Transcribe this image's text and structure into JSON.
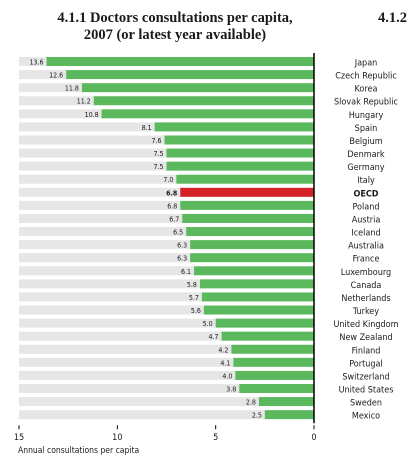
{
  "figure": {
    "number": "4.1.1",
    "title_line1": "Doctors consultations per capita,",
    "title_line2": "2007 (or latest year available)",
    "next_figure_number": "4.1.2"
  },
  "chart_data": {
    "type": "bar",
    "orientation": "horizontal",
    "xlabel": "Annual consultations per capita",
    "xlim": [
      0,
      15
    ],
    "x_axis_reversed": true,
    "xticks": [
      "15",
      "10",
      "5",
      "0"
    ],
    "grid": false,
    "categories": [
      "Japan",
      "Czech Republic",
      "Korea",
      "Slovak Republic",
      "Hungary",
      "Spain",
      "Belgium",
      "Denmark",
      "Germany",
      "Italy",
      "OECD",
      "Poland",
      "Austria",
      "Iceland",
      "Australia",
      "France",
      "Luxembourg",
      "Canada",
      "Netherlands",
      "Turkey",
      "United Kingdom",
      "New Zealand",
      "Finland",
      "Portugal",
      "Switzerland",
      "United States",
      "Sweden",
      "Mexico"
    ],
    "values": [
      13.6,
      12.6,
      11.8,
      11.2,
      10.8,
      8.1,
      7.6,
      7.5,
      7.5,
      7.0,
      6.8,
      6.8,
      6.7,
      6.5,
      6.3,
      6.3,
      6.1,
      5.8,
      5.7,
      5.6,
      5.0,
      4.7,
      4.2,
      4.1,
      4.0,
      3.8,
      2.8,
      2.5
    ],
    "value_labels": [
      "13.6",
      "12.6",
      "11.8",
      "11.2",
      "10.8",
      "8.1",
      "7.6",
      "7.5",
      "7.5",
      "7.0",
      "6.8",
      "6.8",
      "6.7",
      "6.5",
      "6.3",
      "6.3",
      "6.1",
      "5.8",
      "5.7",
      "5.6",
      "5.0",
      "4.7",
      "4.2",
      "4.1",
      "4.0",
      "3.8",
      "2.8",
      "2.5"
    ],
    "highlight_category": "OECD",
    "colors": {
      "bar": "#5cb85c",
      "highlight": "#d42027",
      "track": "#e6e6e6",
      "axis": "#000000",
      "text": "#1a1a1a"
    }
  }
}
